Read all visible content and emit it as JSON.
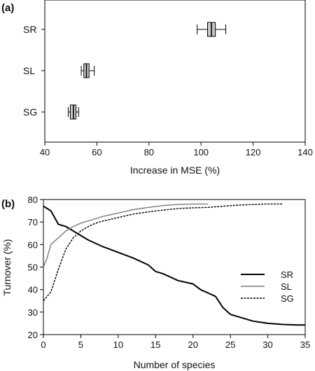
{
  "chart_data": [
    {
      "panel_label": "(a)",
      "type": "boxplot",
      "orientation": "horizontal",
      "xlabel": "Increase in MSE (%)",
      "xlim": [
        40,
        140
      ],
      "xticks": [
        40,
        60,
        80,
        100,
        120,
        140
      ],
      "categories": [
        "SR",
        "SL",
        "SG"
      ],
      "boxes": [
        {
          "label": "SR",
          "min": 98.5,
          "q1": 102.5,
          "median": 104,
          "q3": 105.5,
          "max": 109.5,
          "fill": "#c8c8c8"
        },
        {
          "label": "SL",
          "min": 54,
          "q1": 55,
          "median": 56,
          "q3": 57,
          "max": 59,
          "fill": "#c8c8c8"
        },
        {
          "label": "SG",
          "min": 49,
          "q1": 49.8,
          "median": 51,
          "q3": 52,
          "max": 53,
          "fill": "#c8c8c8"
        }
      ]
    },
    {
      "panel_label": "(b)",
      "type": "line",
      "xlabel": "Number of species",
      "ylabel": "Turnover (%)",
      "xlim": [
        0,
        35
      ],
      "ylim": [
        20,
        80
      ],
      "xticks": [
        0,
        5,
        10,
        15,
        20,
        25,
        30,
        35
      ],
      "yticks": [
        20,
        30,
        40,
        50,
        60,
        70,
        80
      ],
      "legend_position": "right",
      "series": [
        {
          "name": "SR",
          "color": "#000000",
          "dash": "solid",
          "x": [
            0,
            1,
            2,
            3,
            4,
            5,
            6,
            8,
            10,
            12,
            14,
            15,
            16,
            18,
            20,
            21,
            22,
            23,
            24,
            25,
            26,
            28,
            30,
            32,
            34,
            35
          ],
          "y": [
            77,
            75,
            69,
            68,
            66,
            64,
            62,
            59,
            56.5,
            54,
            51,
            48,
            47,
            44,
            42.5,
            40,
            38.5,
            37,
            32,
            29,
            28,
            26,
            25,
            24.5,
            24.3,
            24.3
          ]
        },
        {
          "name": "SL",
          "color": "#7a7a7a",
          "dash": "solid",
          "x": [
            0,
            0.5,
            1,
            2,
            3,
            4,
            5,
            6,
            8,
            10,
            12,
            14,
            16,
            18,
            20,
            22
          ],
          "y": [
            50,
            54,
            60,
            63,
            66,
            68,
            69.5,
            70.5,
            72.5,
            74,
            75.5,
            76.5,
            77.3,
            77.8,
            78,
            78
          ]
        },
        {
          "name": "SG",
          "color": "#000000",
          "dash": "dashed",
          "x": [
            0,
            1,
            2,
            3,
            4,
            5,
            6,
            7,
            8,
            10,
            12,
            14,
            16,
            18,
            20,
            22,
            24,
            26,
            28,
            30,
            32
          ],
          "y": [
            35,
            39,
            49,
            58,
            63,
            66,
            68,
            69.5,
            70.5,
            72,
            73.5,
            74.5,
            75.3,
            76,
            76.3,
            76.5,
            77,
            77.5,
            77.8,
            78,
            78
          ]
        }
      ]
    }
  ]
}
